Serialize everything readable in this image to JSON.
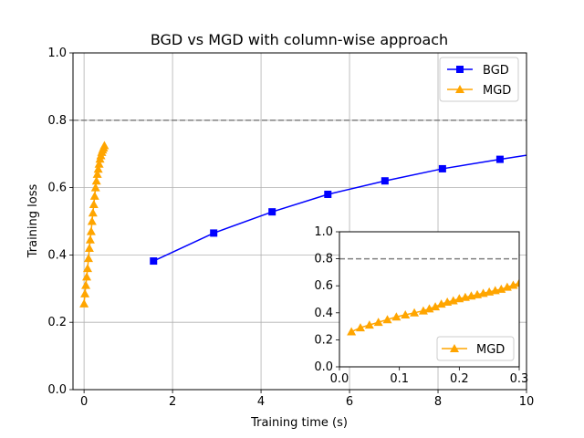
{
  "chart_data": [
    {
      "type": "line",
      "title": "BGD vs MGD with column-wise approach",
      "xlabel": "Training time (s)",
      "ylabel": "Training loss",
      "xlim": [
        -0.25,
        10
      ],
      "ylim": [
        0.0,
        1.0
      ],
      "xticks": [
        "0",
        "2",
        "4",
        "6",
        "8",
        "10"
      ],
      "xtick_values": [
        0,
        2,
        4,
        6,
        8,
        10
      ],
      "yticks": [
        "0.0",
        "0.2",
        "0.4",
        "0.6",
        "0.8",
        "1.0"
      ],
      "ytick_values": [
        0.0,
        0.2,
        0.4,
        0.6,
        0.8,
        1.0
      ],
      "grid": true,
      "legend_position": "upper right",
      "reference_line": {
        "y": 0.8,
        "style": "dashed",
        "color": "#808080"
      },
      "series": [
        {
          "name": "BGD",
          "color": "#0000ff",
          "marker": "square",
          "x": [
            1.57,
            2.93,
            4.25,
            5.51,
            6.8,
            8.1,
            9.4,
            10.7
          ],
          "y": [
            0.382,
            0.465,
            0.528,
            0.58,
            0.62,
            0.656,
            0.684,
            0.71
          ]
        },
        {
          "name": "MGD",
          "color": "#ffa500",
          "marker": "triangle",
          "x": [
            0.0,
            0.02,
            0.04,
            0.06,
            0.08,
            0.1,
            0.12,
            0.14,
            0.16,
            0.18,
            0.2,
            0.22,
            0.24,
            0.26,
            0.28,
            0.3,
            0.32,
            0.34,
            0.36,
            0.38,
            0.4,
            0.42,
            0.44,
            0.46
          ],
          "y": [
            0.255,
            0.285,
            0.31,
            0.335,
            0.36,
            0.39,
            0.42,
            0.445,
            0.47,
            0.5,
            0.525,
            0.55,
            0.575,
            0.6,
            0.62,
            0.64,
            0.655,
            0.67,
            0.685,
            0.695,
            0.705,
            0.712,
            0.718,
            0.725
          ]
        }
      ]
    },
    {
      "type": "line",
      "title": "",
      "xlabel": "",
      "ylabel": "",
      "xlim": [
        0.0,
        0.3
      ],
      "ylim": [
        0.0,
        1.0
      ],
      "xticks": [
        "0.0",
        "0.1",
        "0.2",
        "0.3"
      ],
      "xtick_values": [
        0.0,
        0.1,
        0.2,
        0.3
      ],
      "yticks": [
        "0.0",
        "0.2",
        "0.4",
        "0.6",
        "0.8",
        "1.0"
      ],
      "ytick_values": [
        0.0,
        0.2,
        0.4,
        0.6,
        0.8,
        1.0
      ],
      "grid": false,
      "legend_position": "lower right",
      "reference_line": {
        "y": 0.8,
        "style": "dashed",
        "color": "#808080"
      },
      "series": [
        {
          "name": "MGD",
          "color": "#ffa500",
          "marker": "triangle",
          "x": [
            0.02,
            0.035,
            0.05,
            0.065,
            0.08,
            0.095,
            0.11,
            0.125,
            0.14,
            0.15,
            0.16,
            0.17,
            0.18,
            0.19,
            0.2,
            0.21,
            0.22,
            0.23,
            0.24,
            0.25,
            0.26,
            0.27,
            0.28,
            0.29,
            0.3
          ],
          "y": [
            0.26,
            0.29,
            0.31,
            0.33,
            0.35,
            0.37,
            0.385,
            0.4,
            0.415,
            0.43,
            0.445,
            0.465,
            0.48,
            0.49,
            0.505,
            0.515,
            0.525,
            0.535,
            0.545,
            0.555,
            0.565,
            0.575,
            0.59,
            0.605,
            0.62
          ]
        }
      ]
    }
  ]
}
